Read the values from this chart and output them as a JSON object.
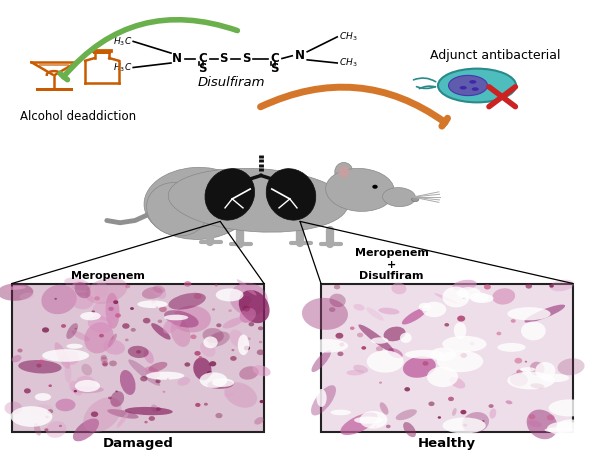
{
  "bg_color": "#ffffff",
  "green_arrow_color": "#6ab04c",
  "orange_arrow_color": "#d4772a",
  "alcohol_color": "#c85a00",
  "text_alcohol": "Alcohol deaddiction",
  "text_disulfiram": "Disulfiram",
  "text_adjunct": "Adjunct antibacterial",
  "text_meropenem": "Meropenem",
  "text_meropenem_dis": "Meropenem\n+\nDisulfiram",
  "text_damaged": "Damaged",
  "text_healthy": "Healthy",
  "rat_color": "#aaaaaa",
  "lung_color": "#111111",
  "bact_teal": "#4dbdbd",
  "bact_dark_teal": "#2a8a8a",
  "bact_purple": "#6644aa",
  "red_cross": "#cc2222",
  "panel_left_bg": "#ddc0cc",
  "panel_right_bg": "#eedde8",
  "panel_border": "#222222"
}
